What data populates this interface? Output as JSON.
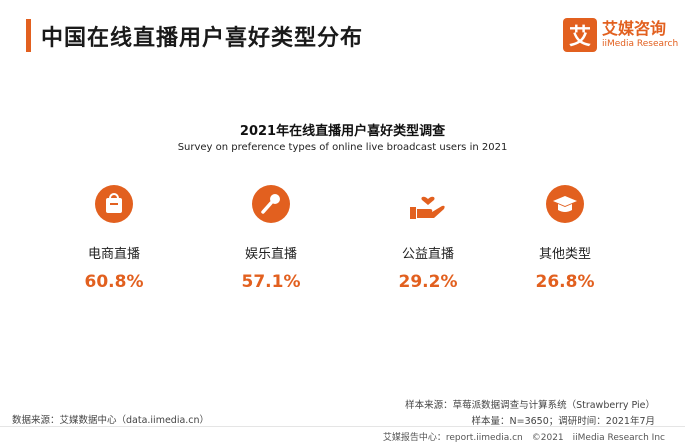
{
  "header": {
    "title": "中国在线直播用户喜好类型分布",
    "logo_mark": "艾",
    "logo_cn": "艾媒咨询",
    "logo_en": "iiMedia Research"
  },
  "chart_data": {
    "type": "table",
    "title": "2021年在线直播用户喜好类型调查",
    "subtitle": "Survey on preference types of online live broadcast users in 2021",
    "categories": [
      "电商直播",
      "娱乐直播",
      "公益直播",
      "其他类型"
    ],
    "values": [
      60.8,
      57.1,
      29.2,
      26.8
    ],
    "value_labels": [
      "60.8%",
      "57.1%",
      "29.2%",
      "26.8%"
    ],
    "icons": [
      "shopping-bag-icon",
      "microphone-icon",
      "hand-heart-icon",
      "graduation-cap-icon"
    ],
    "accent_color": "#e2601f"
  },
  "footer": {
    "data_source": "数据来源：艾媒数据中心（data.iimedia.cn）",
    "sample_source": "样本来源：草莓派数据调查与计算系统（Strawberry Pie）",
    "sample_info": "样本量：N=3650；调研时间：2021年7月",
    "copyright": "艾媒报告中心：report.iimedia.cn　©2021　iiMedia Research Inc"
  }
}
